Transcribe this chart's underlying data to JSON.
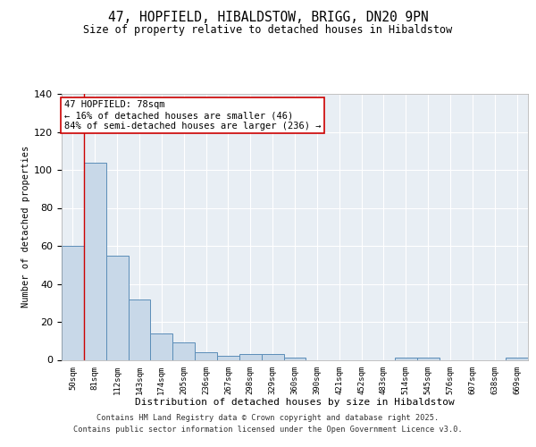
{
  "title1": "47, HOPFIELD, HIBALDSTOW, BRIGG, DN20 9PN",
  "title2": "Size of property relative to detached houses in Hibaldstow",
  "xlabel": "Distribution of detached houses by size in Hibaldstow",
  "ylabel": "Number of detached properties",
  "categories": [
    "50sqm",
    "81sqm",
    "112sqm",
    "143sqm",
    "174sqm",
    "205sqm",
    "236sqm",
    "267sqm",
    "298sqm",
    "329sqm",
    "360sqm",
    "390sqm",
    "421sqm",
    "452sqm",
    "483sqm",
    "514sqm",
    "545sqm",
    "576sqm",
    "607sqm",
    "638sqm",
    "669sqm"
  ],
  "values": [
    60,
    104,
    55,
    32,
    14,
    9,
    4,
    2,
    3,
    3,
    1,
    0,
    0,
    0,
    0,
    1,
    1,
    0,
    0,
    0,
    1
  ],
  "bar_color": "#c8d8e8",
  "bar_edge_color": "#5b8db8",
  "vline_x": 0.5,
  "vline_color": "#cc0000",
  "annotation_title": "47 HOPFIELD: 78sqm",
  "annotation_line2": "← 16% of detached houses are smaller (46)",
  "annotation_line3": "84% of semi-detached houses are larger (236) →",
  "annotation_box_facecolor": "white",
  "annotation_box_edgecolor": "#cc0000",
  "ylim": [
    0,
    140
  ],
  "yticks": [
    0,
    20,
    40,
    60,
    80,
    100,
    120,
    140
  ],
  "background_color": "#e8eef4",
  "grid_color": "#d0d8e8",
  "footer_line1": "Contains HM Land Registry data © Crown copyright and database right 2025.",
  "footer_line2": "Contains public sector information licensed under the Open Government Licence v3.0."
}
